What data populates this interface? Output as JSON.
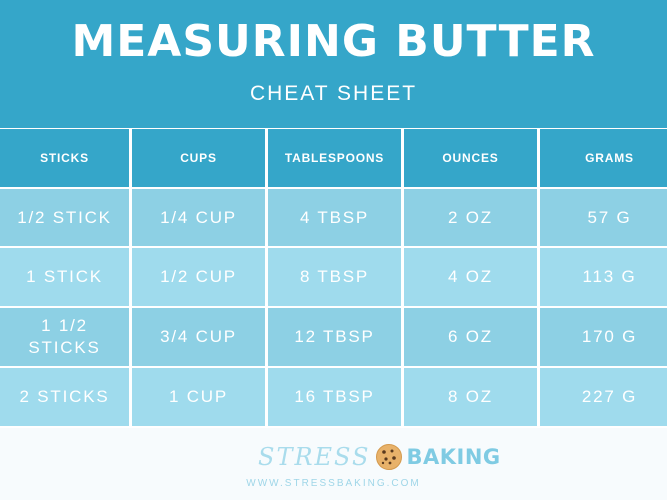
{
  "header": {
    "title": "MEASURING BUTTER",
    "subtitle": "CHEAT SHEET"
  },
  "table": {
    "columns": [
      "STICKS",
      "CUPS",
      "TABLESPOONS",
      "OUNCES",
      "GRAMS"
    ],
    "rows": [
      [
        "1/2 STICK",
        "1/4 CUP",
        "4 TBSP",
        "2 OZ",
        "57 G"
      ],
      [
        "1 STICK",
        "1/2 CUP",
        "8 TBSP",
        "4 OZ",
        "113 G"
      ],
      [
        "1 1/2\nSTICKS",
        "3/4 CUP",
        "12 TBSP",
        "6 OZ",
        "170 G"
      ],
      [
        "2 STICKS",
        "1 CUP",
        "16 TBSP",
        "8 OZ",
        "227 G"
      ]
    ]
  },
  "footer": {
    "logo_stress": "STRESS",
    "logo_baking": "BAKING",
    "logo_icon": "cookie-icon",
    "url": "WWW.STRESSBAKING.COM"
  },
  "colors": {
    "header_bg": "#35a6c9",
    "row_a": "#8dd0e4",
    "row_b": "#9fdbed",
    "footer_bg": "#f7fbfd"
  }
}
